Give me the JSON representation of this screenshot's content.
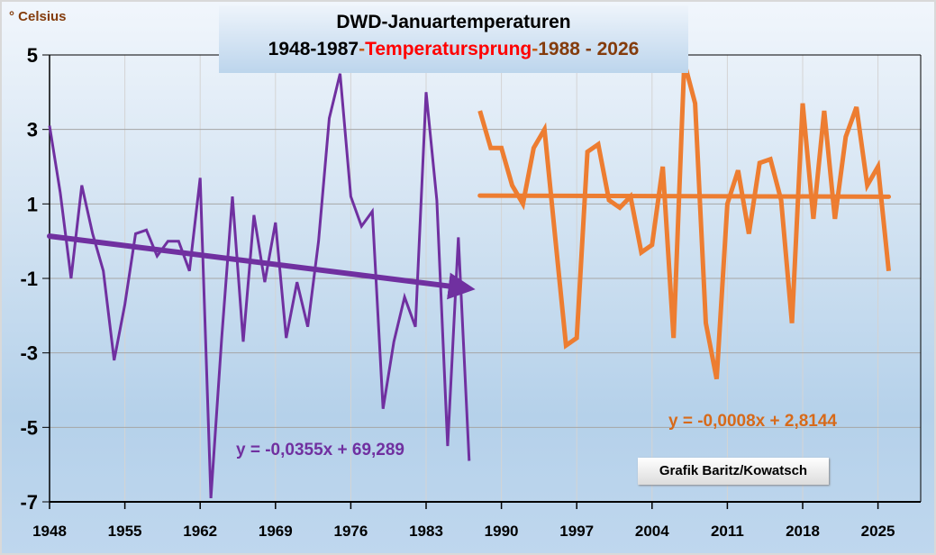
{
  "chart_data": {
    "type": "line",
    "title": "DWD-Januartemperaturen",
    "subtitle_parts": [
      {
        "text": "1948-1987",
        "color": "#000000"
      },
      {
        "text": "-",
        "color": "#c55a11"
      },
      {
        "text": "Temperatursprung",
        "color": "#ff0000"
      },
      {
        "text": "-",
        "color": "#c55a11"
      },
      {
        "text": "1988 - 2026",
        "color": "#843c0c"
      }
    ],
    "ylabel": "° Celsius",
    "xlabel": "",
    "ylim": [
      -7,
      5
    ],
    "xlim": [
      1948,
      2027
    ],
    "y_ticks": [
      5,
      3,
      1,
      -1,
      -3,
      -5,
      -7
    ],
    "x_ticks": [
      1948,
      1955,
      1962,
      1969,
      1976,
      1983,
      1990,
      1997,
      2004,
      2011,
      2018,
      2025
    ],
    "grid": true,
    "series": [
      {
        "name": "1948-1987",
        "color": "#7030a0",
        "x": [
          1948,
          1949,
          1950,
          1951,
          1952,
          1953,
          1954,
          1955,
          1956,
          1957,
          1958,
          1959,
          1960,
          1961,
          1962,
          1963,
          1964,
          1965,
          1966,
          1967,
          1968,
          1969,
          1970,
          1971,
          1972,
          1973,
          1974,
          1975,
          1976,
          1977,
          1978,
          1979,
          1980,
          1981,
          1982,
          1983,
          1984,
          1985,
          1986,
          1987
        ],
        "values": [
          3.1,
          1.3,
          -1.0,
          1.5,
          0.2,
          -0.8,
          -3.2,
          -1.7,
          0.2,
          0.3,
          -0.4,
          0.0,
          0.0,
          -0.8,
          1.7,
          -6.9,
          -2.6,
          1.2,
          -2.7,
          0.7,
          -1.1,
          0.5,
          -2.6,
          -1.1,
          -2.3,
          0.0,
          3.3,
          4.5,
          1.2,
          0.4,
          0.8,
          -4.5,
          -2.7,
          -1.5,
          -2.3,
          4.0,
          1.1,
          -5.5,
          0.1,
          -5.9
        ],
        "trend": {
          "slope": -0.0355,
          "intercept": 69.289,
          "label": "y = -0,0355x + 69,289",
          "x_range": [
            1948,
            1987
          ],
          "arrow": true
        }
      },
      {
        "name": "1988-2026",
        "color": "#ed7d31",
        "x": [
          1988,
          1989,
          1990,
          1991,
          1992,
          1993,
          1994,
          1995,
          1996,
          1997,
          1998,
          1999,
          2000,
          2001,
          2002,
          2003,
          2004,
          2005,
          2006,
          2007,
          2008,
          2009,
          2010,
          2011,
          2012,
          2013,
          2014,
          2015,
          2016,
          2017,
          2018,
          2019,
          2020,
          2021,
          2022,
          2023,
          2024,
          2025,
          2026
        ],
        "values": [
          3.5,
          2.5,
          2.5,
          1.5,
          1.0,
          2.5,
          3.0,
          0.1,
          -2.8,
          -2.6,
          2.4,
          2.6,
          1.1,
          0.9,
          1.2,
          -0.3,
          -0.1,
          2.0,
          -2.6,
          4.8,
          3.7,
          -2.2,
          -3.7,
          1.0,
          1.9,
          0.2,
          2.1,
          2.2,
          1.1,
          -2.2,
          3.7,
          0.6,
          3.5,
          0.6,
          2.8,
          3.6,
          1.5,
          2.0,
          -0.8
        ],
        "trend": {
          "slope": -0.0008,
          "intercept": 2.8144,
          "label": "y = -0,0008x + 2,8144",
          "x_range": [
            1988,
            2026
          ],
          "arrow": false
        }
      }
    ],
    "annotations": [
      "Grafik Baritz/Kowatsch"
    ]
  }
}
